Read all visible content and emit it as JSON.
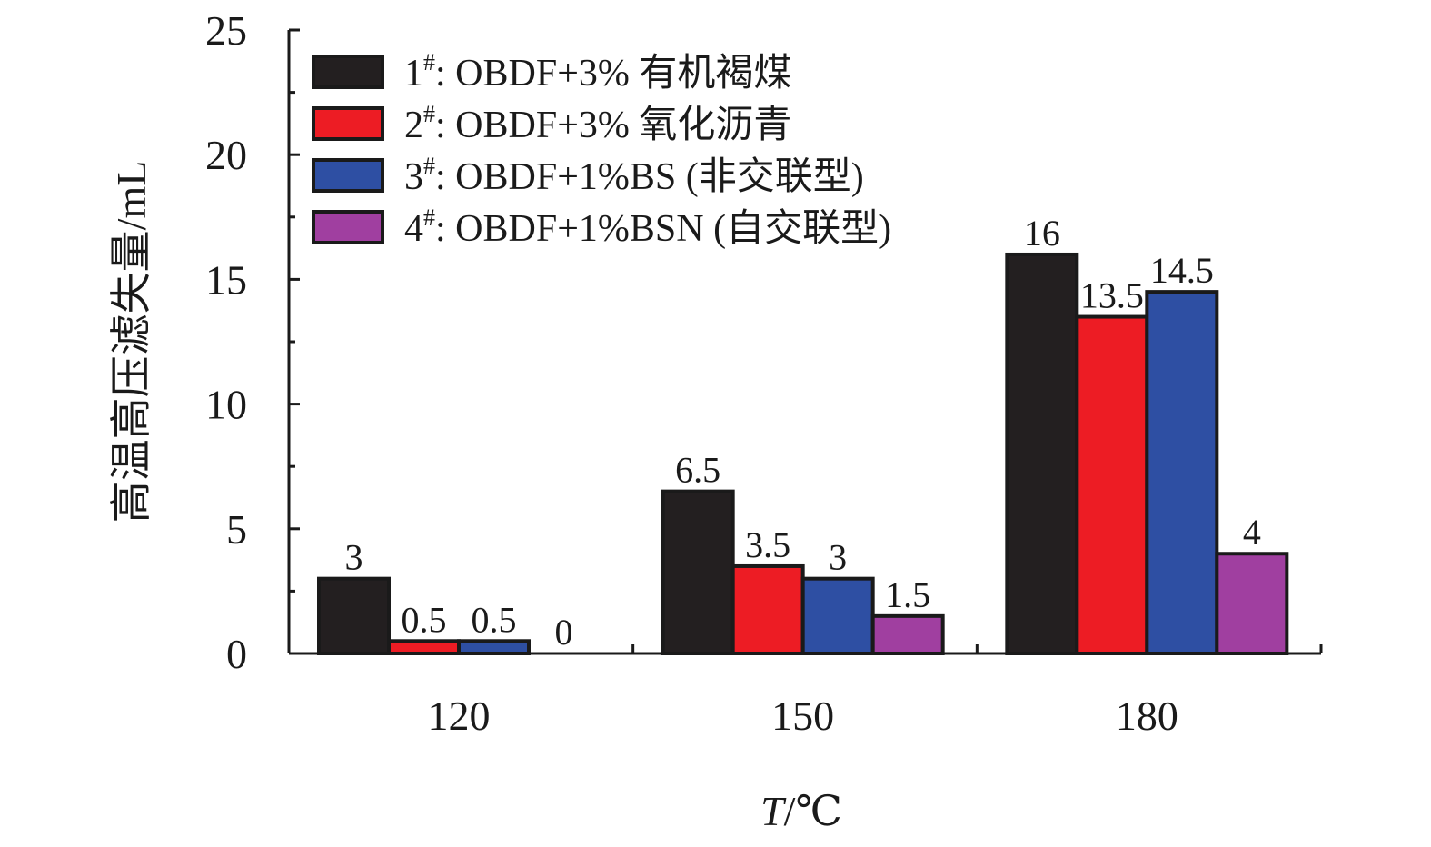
{
  "chart_data": {
    "type": "bar",
    "xlabel_var": "T",
    "xlabel_unit": "/℃",
    "ylabel": "高温高压滤失量/mL",
    "ylim": [
      0,
      25
    ],
    "y_ticks": [
      "0",
      "5",
      "10",
      "15",
      "20",
      "25"
    ],
    "categories": [
      "120",
      "150",
      "180"
    ],
    "legend_position": "top-left",
    "series": [
      {
        "num": "1",
        "sup": "#",
        "name": ": OBDF+3% 有机褐煤",
        "color": "#231f20",
        "values": [
          3,
          6.5,
          16
        ],
        "labels": [
          "3",
          "6.5",
          "16"
        ]
      },
      {
        "num": "2",
        "sup": "#",
        "name": ": OBDF+3% 氧化沥青",
        "color": "#ed1c24",
        "values": [
          0.5,
          3.5,
          13.5
        ],
        "labels": [
          "0.5",
          "3.5",
          "13.5"
        ]
      },
      {
        "num": "3",
        "sup": "#",
        "name": ": OBDF+1%BS (非交联型)",
        "color": "#2e4fa3",
        "values": [
          0.5,
          3,
          14.5
        ],
        "labels": [
          "0.5",
          "3",
          "14.5"
        ]
      },
      {
        "num": "4",
        "sup": "#",
        "name": ": OBDF+1%BSN (自交联型)",
        "color": "#a03fa0",
        "values": [
          0,
          1.5,
          4
        ],
        "labels": [
          "0",
          "1.5",
          "4"
        ]
      }
    ]
  }
}
